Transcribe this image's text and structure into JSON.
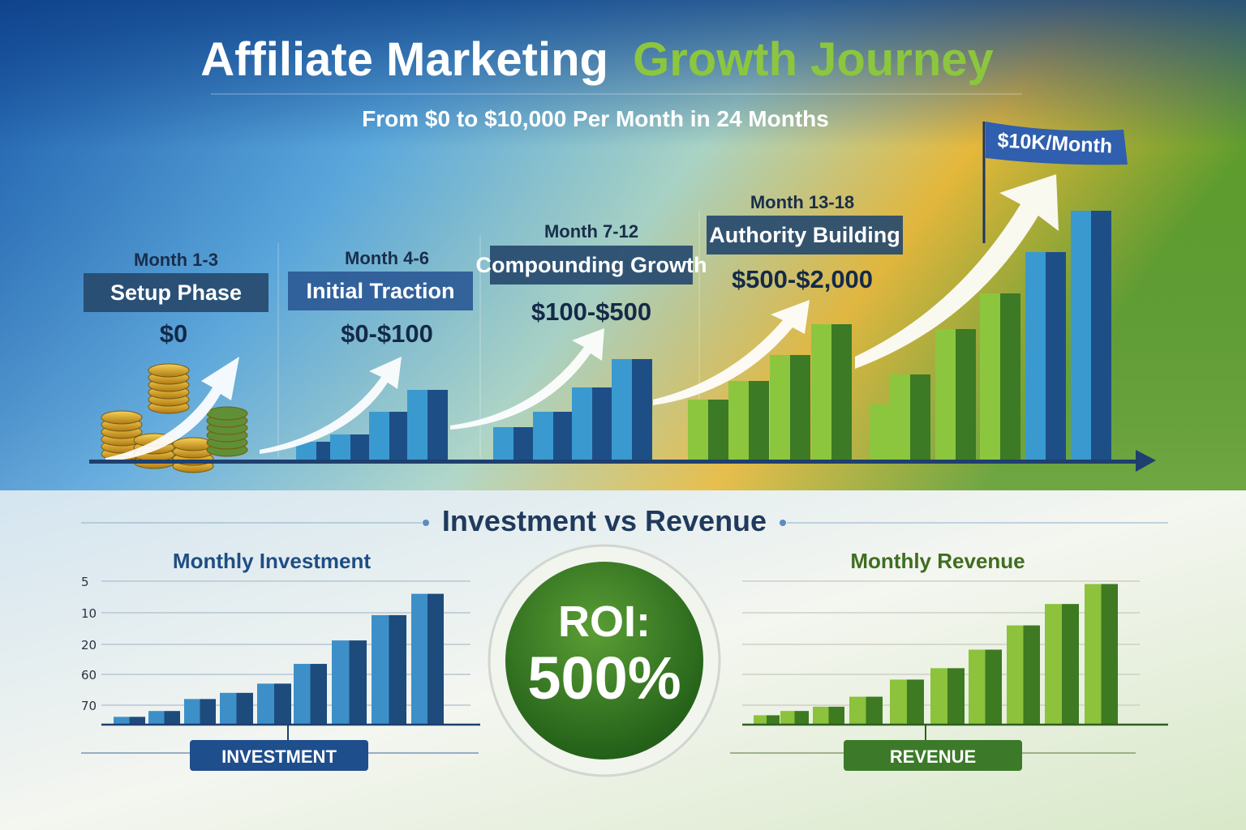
{
  "header": {
    "title_part1": "Affiliate Marketing",
    "title_part2": "Growth Journey",
    "subtitle": "From $0 to $10,000 Per Month in 24 Months",
    "goal_flag": "$10K/Month"
  },
  "phases": [
    {
      "months": "Month 1-3",
      "name": "Setup Phase",
      "income": "$0"
    },
    {
      "months": "Month 4-6",
      "name": "Initial Traction",
      "income": "$0-$100"
    },
    {
      "months": "Month 7-12",
      "name": "Compounding Growth",
      "income": "$100-$500"
    },
    {
      "months": "Month 13-18",
      "name": "Authority Building",
      "income": "$500-$2,000"
    }
  ],
  "comparison": {
    "title": "Investment vs Revenue",
    "roi_label": "ROI:",
    "roi_value": "500%"
  },
  "colors": {
    "blue": "#1f4e84",
    "green": "#3f7f25",
    "gold": "#d9a521",
    "title_green": "#8cc63f"
  },
  "chart_data": [
    {
      "type": "bar",
      "title": "Monthly Investment",
      "button_label": "INVESTMENT",
      "ytick_labels": [
        "5",
        "10",
        "20",
        "60",
        "70"
      ],
      "values": [
        2,
        3.5,
        6,
        7,
        8.5,
        13.5,
        25,
        57,
        66
      ],
      "grid": true
    },
    {
      "type": "bar",
      "title": "Monthly Revenue",
      "button_label": "REVENUE",
      "ytick_labels": [],
      "values": [
        6,
        9,
        12,
        19,
        31,
        39,
        52,
        69,
        84,
        98
      ],
      "ylim": [
        0,
        100
      ],
      "grid": true
    }
  ]
}
